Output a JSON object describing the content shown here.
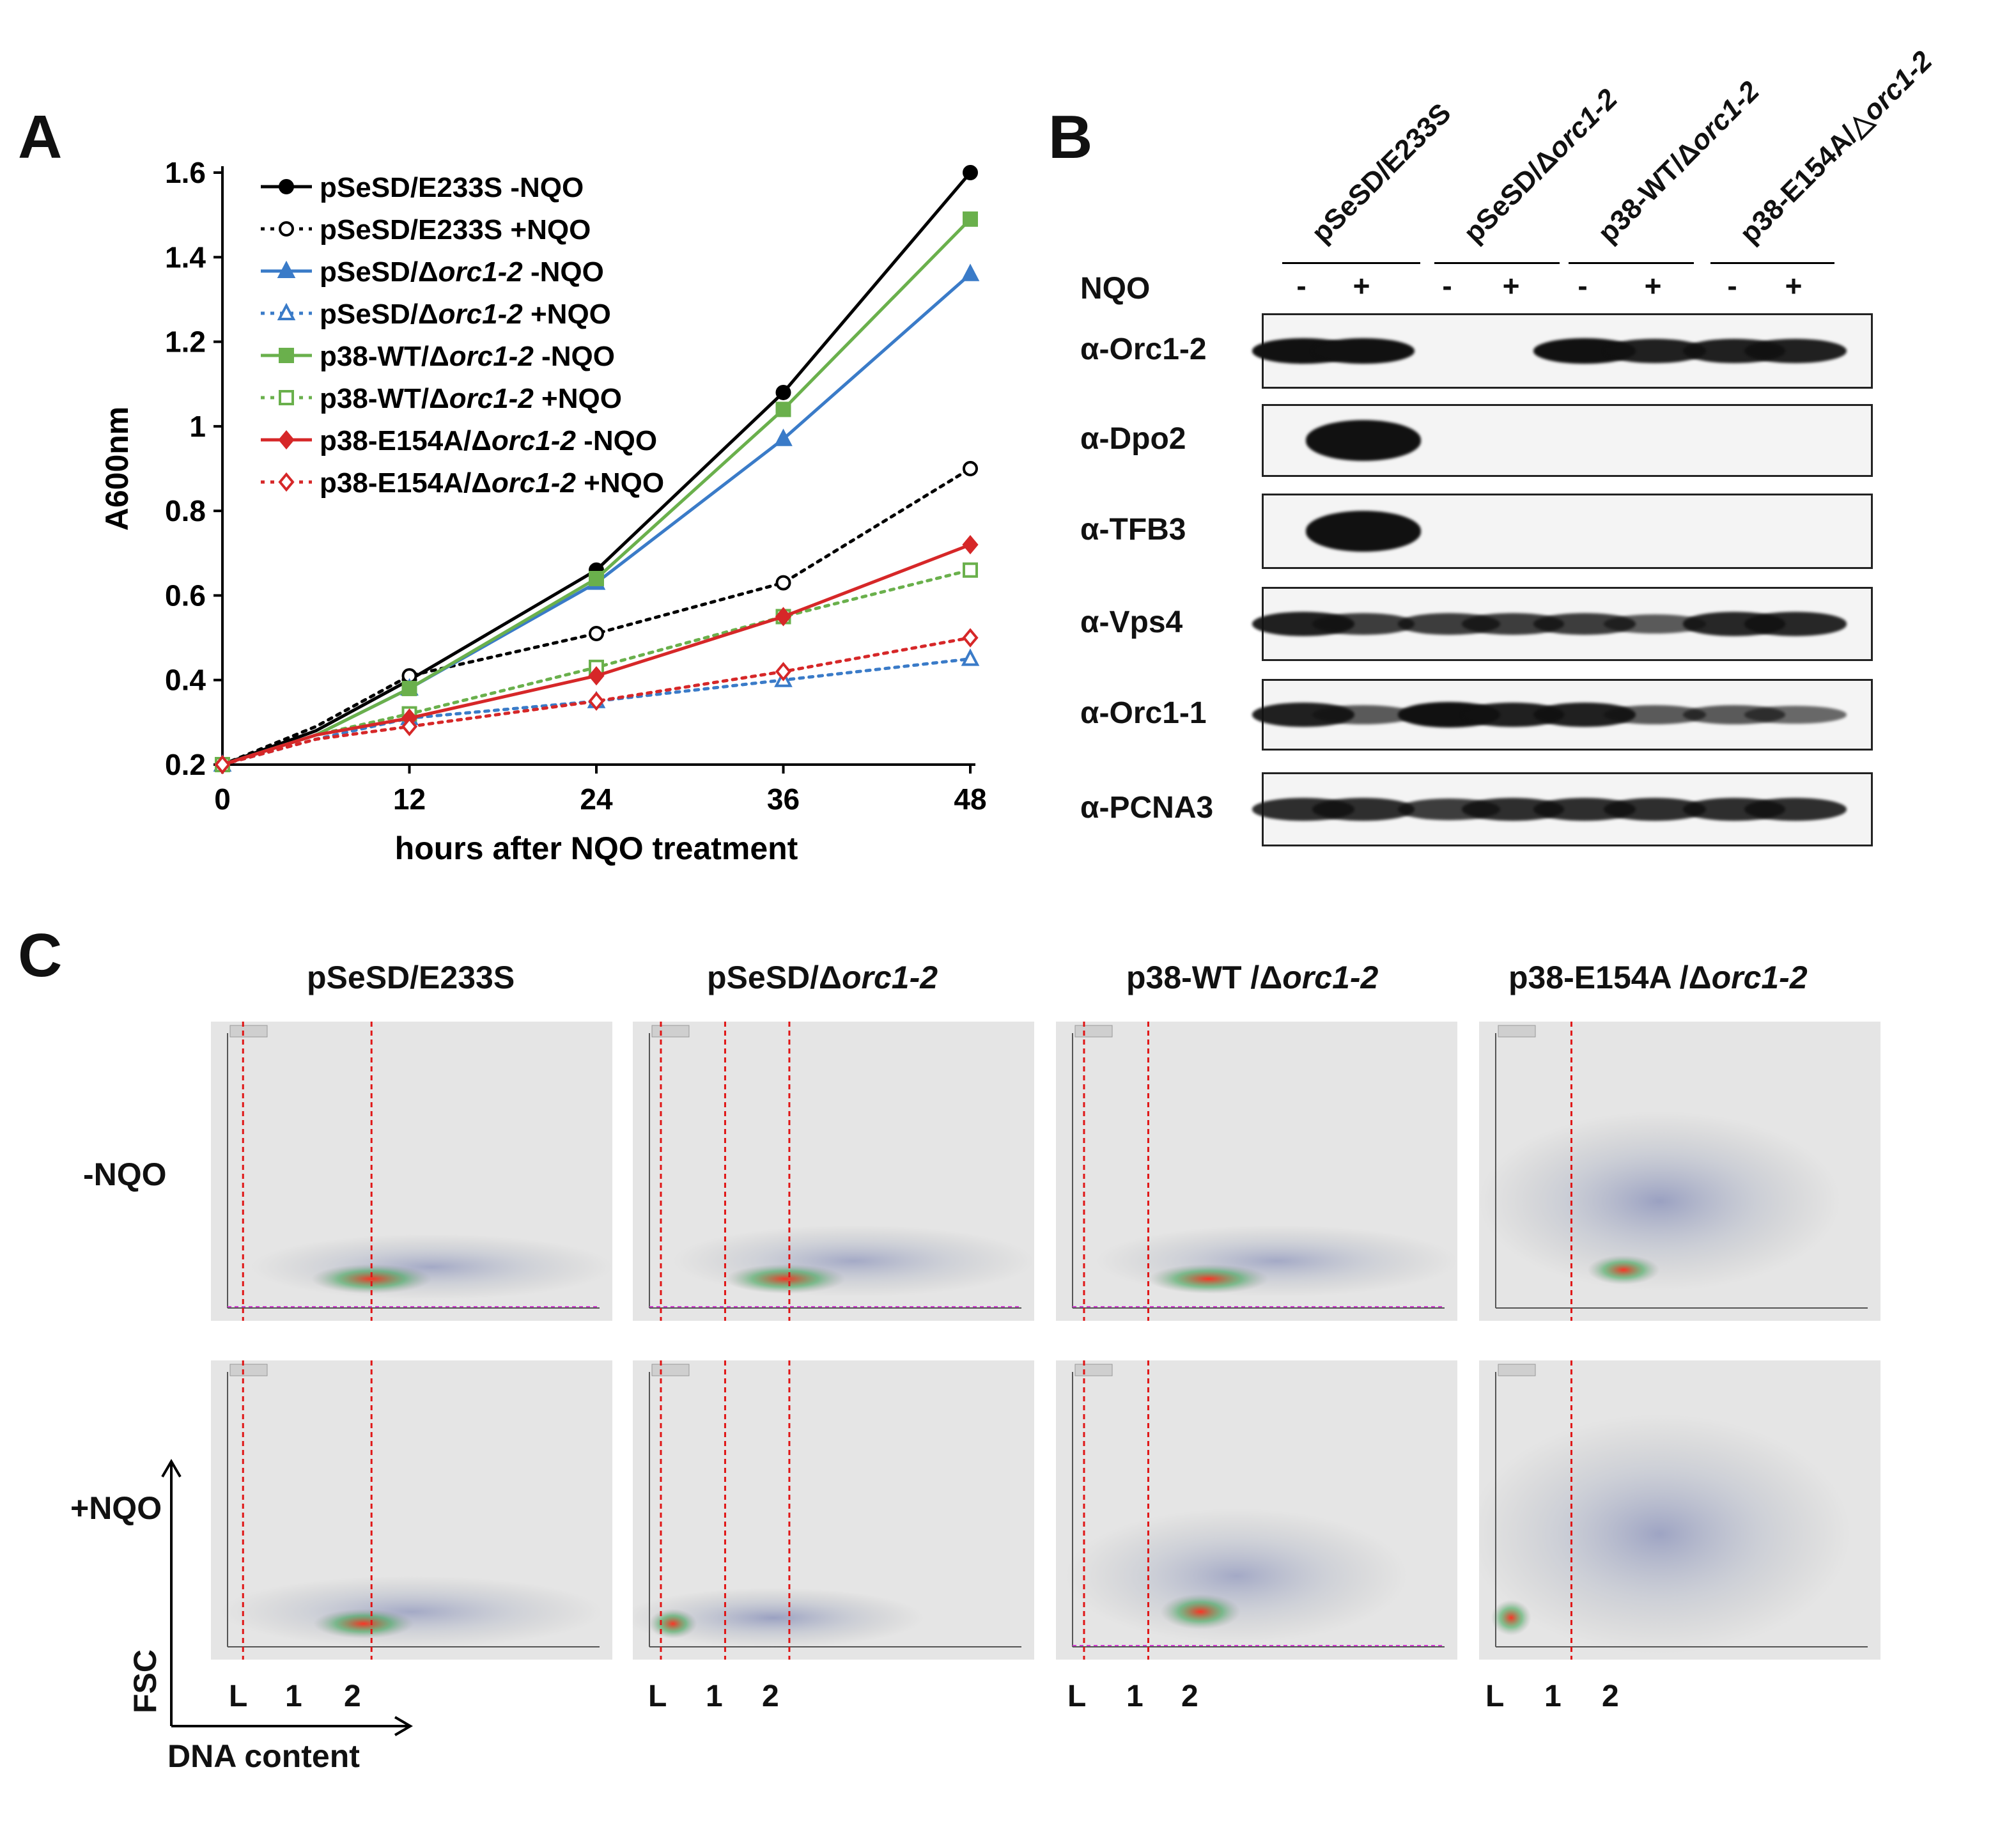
{
  "panels": {
    "a": "A",
    "b": "B",
    "c": "C"
  },
  "chart_data": {
    "type": "line",
    "title": "",
    "xlabel": "hours after NQO treatment",
    "ylabel": "A600nm",
    "xlim": [
      0,
      48
    ],
    "ylim": [
      0.2,
      1.6
    ],
    "xticks": [
      0,
      12,
      24,
      36,
      48
    ],
    "yticks": [
      0.2,
      0.4,
      0.6,
      0.8,
      1.0,
      1.2,
      1.4,
      1.6
    ],
    "ytick_labels": [
      "0.2",
      "0.4",
      "0.6",
      "0.8",
      "1",
      "1.2",
      "1.4",
      "1.6"
    ],
    "legend_position": "top-left",
    "series": [
      {
        "name": "pSeSD/E233S -NQO",
        "name_prefix": "pSeSD/E233S",
        "name_italic": "",
        "name_suffix": " -NQO",
        "color": "#000000",
        "dash": "solid",
        "marker": "circle",
        "filled": true,
        "x": [
          0,
          6,
          12,
          24,
          36,
          48
        ],
        "values": [
          0.2,
          0.28,
          0.4,
          0.66,
          1.08,
          1.6
        ]
      },
      {
        "name": "pSeSD/E233S +NQO",
        "name_prefix": "pSeSD/E233S",
        "name_italic": "",
        "name_suffix": " +NQO",
        "color": "#000000",
        "dash": "dotted",
        "marker": "circle",
        "filled": false,
        "x": [
          0,
          6,
          12,
          24,
          36,
          48
        ],
        "values": [
          0.2,
          0.29,
          0.41,
          0.51,
          0.63,
          0.9
        ]
      },
      {
        "name": "pSeSD/Δorc1-2 -NQO",
        "name_prefix": "pSeSD/Δ",
        "name_italic": "orc1-2",
        "name_suffix": " -NQO",
        "color": "#3a7bc8",
        "dash": "solid",
        "marker": "triangle",
        "filled": true,
        "x": [
          0,
          6,
          12,
          24,
          36,
          48
        ],
        "values": [
          0.2,
          0.27,
          0.38,
          0.63,
          0.97,
          1.36
        ]
      },
      {
        "name": "pSeSD/Δorc1-2 +NQO",
        "name_prefix": "pSeSD/Δ",
        "name_italic": "orc1-2",
        "name_suffix": " +NQO",
        "color": "#3a7bc8",
        "dash": "dotted",
        "marker": "triangle",
        "filled": false,
        "x": [
          0,
          6,
          12,
          24,
          36,
          48
        ],
        "values": [
          0.2,
          0.26,
          0.31,
          0.35,
          0.4,
          0.45
        ]
      },
      {
        "name": "p38-WT/Δorc1-2 -NQO",
        "name_prefix": "p38-WT/Δ",
        "name_italic": "orc1-2",
        "name_suffix": " -NQO",
        "color": "#6ab04c",
        "dash": "solid",
        "marker": "square",
        "filled": true,
        "x": [
          0,
          6,
          12,
          24,
          36,
          48
        ],
        "values": [
          0.2,
          0.27,
          0.38,
          0.64,
          1.04,
          1.49
        ]
      },
      {
        "name": "p38-WT/Δorc1-2 +NQO",
        "name_prefix": "p38-WT/Δ",
        "name_italic": "orc1-2",
        "name_suffix": " +NQO",
        "color": "#6ab04c",
        "dash": "dotted",
        "marker": "square",
        "filled": false,
        "x": [
          0,
          6,
          12,
          24,
          36,
          48
        ],
        "values": [
          0.2,
          0.27,
          0.32,
          0.43,
          0.55,
          0.66
        ]
      },
      {
        "name": "p38-E154A/Δorc1-2 -NQO",
        "name_prefix": "p38-E154A/Δ",
        "name_italic": "orc1-2",
        "name_suffix": " -NQO",
        "color": "#d62728",
        "dash": "solid",
        "marker": "diamond",
        "filled": true,
        "x": [
          0,
          6,
          12,
          24,
          36,
          48
        ],
        "values": [
          0.2,
          0.27,
          0.31,
          0.41,
          0.55,
          0.72
        ]
      },
      {
        "name": "p38-E154A/Δorc1-2 +NQO",
        "name_prefix": "p38-E154A/Δ",
        "name_italic": "orc1-2",
        "name_suffix": " +NQO",
        "color": "#d62728",
        "dash": "dotted",
        "marker": "diamond",
        "filled": false,
        "x": [
          0,
          6,
          12,
          24,
          36,
          48
        ],
        "values": [
          0.2,
          0.26,
          0.29,
          0.35,
          0.42,
          0.5
        ]
      }
    ]
  },
  "blot": {
    "strains": [
      {
        "prefix": "pSeSD/E233S",
        "italic": ""
      },
      {
        "prefix": "pSeSD/Δ",
        "italic": "orc1-2"
      },
      {
        "prefix": "p38-WT/Δ",
        "italic": "orc1-2"
      },
      {
        "prefix": "p38-E154A/△",
        "italic": "orc1-2"
      }
    ],
    "treatment_label": "NQO",
    "minus": "-",
    "plus": "+",
    "rows": [
      {
        "label": "α-Orc1-2",
        "bands": [
          1.0,
          1.0,
          0,
          0,
          1.0,
          0.9,
          0.9,
          0.9
        ]
      },
      {
        "label": "α-Dpo2",
        "bands": [
          0,
          1.0,
          0,
          0,
          0,
          0,
          0,
          0
        ]
      },
      {
        "label": "α-TFB3",
        "bands": [
          0,
          1.0,
          0,
          0,
          0,
          0,
          0,
          0
        ]
      },
      {
        "label": "α-Vps4",
        "bands": [
          0.9,
          0.7,
          0.7,
          0.7,
          0.7,
          0.5,
          0.85,
          0.85
        ]
      },
      {
        "label": "α-Orc1-1",
        "bands": [
          0.9,
          0.5,
          1.0,
          0.9,
          0.9,
          0.5,
          0.5,
          0.4
        ]
      },
      {
        "label": "α-PCNA3",
        "bands": [
          0.8,
          0.8,
          0.7,
          0.8,
          0.8,
          0.8,
          0.8,
          0.8
        ]
      }
    ]
  },
  "flow": {
    "columns": [
      {
        "prefix": "pSeSD/E233S",
        "italic": ""
      },
      {
        "prefix": "pSeSD/Δ",
        "italic": "orc1-2"
      },
      {
        "prefix": "p38-WT /Δ",
        "italic": "orc1-2"
      },
      {
        "prefix": "p38-E154A /Δ",
        "italic": "orc1-2"
      }
    ],
    "rows": [
      "-NQO",
      "+NQO"
    ],
    "ticks": [
      "L",
      "1",
      "2"
    ],
    "y_axis": "FSC",
    "x_axis": "DNA content"
  }
}
